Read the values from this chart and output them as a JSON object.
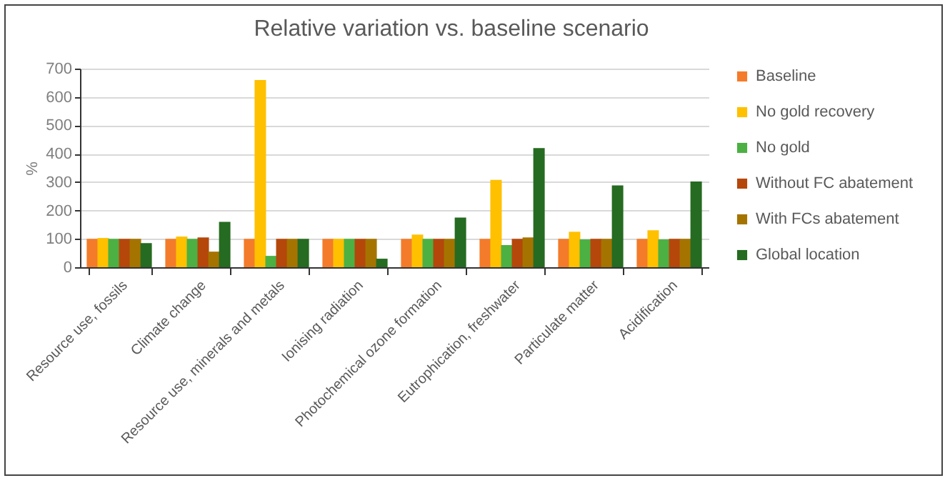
{
  "chart_data": {
    "type": "bar",
    "title": "Relative variation vs. baseline scenario",
    "ylabel": "%",
    "categories": [
      "Resource use, fossils",
      "Climate change",
      "Resource use, minerals and metals",
      "Ionising radiation",
      "Photochemical ozone formation",
      "Eutrophication, freshwater",
      "Particulate matter",
      "Acidification"
    ],
    "series": [
      {
        "name": "Baseline",
        "color": "#f47b2a",
        "values": [
          100,
          100,
          100,
          100,
          100,
          100,
          100,
          100
        ]
      },
      {
        "name": "No gold recovery",
        "color": "#ffc000",
        "values": [
          103,
          108,
          660,
          100,
          115,
          308,
          125,
          130
        ]
      },
      {
        "name": "No gold",
        "color": "#4cb043",
        "values": [
          100,
          100,
          40,
          100,
          100,
          78,
          98,
          98
        ]
      },
      {
        "name": "Without FC abatement",
        "color": "#b5470b",
        "values": [
          100,
          105,
          100,
          100,
          100,
          100,
          100,
          100
        ]
      },
      {
        "name": "With FCs abatement",
        "color": "#a57400",
        "values": [
          100,
          55,
          100,
          100,
          100,
          105,
          100,
          100
        ]
      },
      {
        "name": "Global location",
        "color": "#256b21",
        "values": [
          85,
          160,
          100,
          30,
          175,
          420,
          288,
          302
        ]
      }
    ],
    "ylim": [
      0,
      700
    ],
    "yticks": [
      0,
      100,
      200,
      300,
      400,
      500,
      600,
      700
    ],
    "grid": "y",
    "legend": "right"
  }
}
